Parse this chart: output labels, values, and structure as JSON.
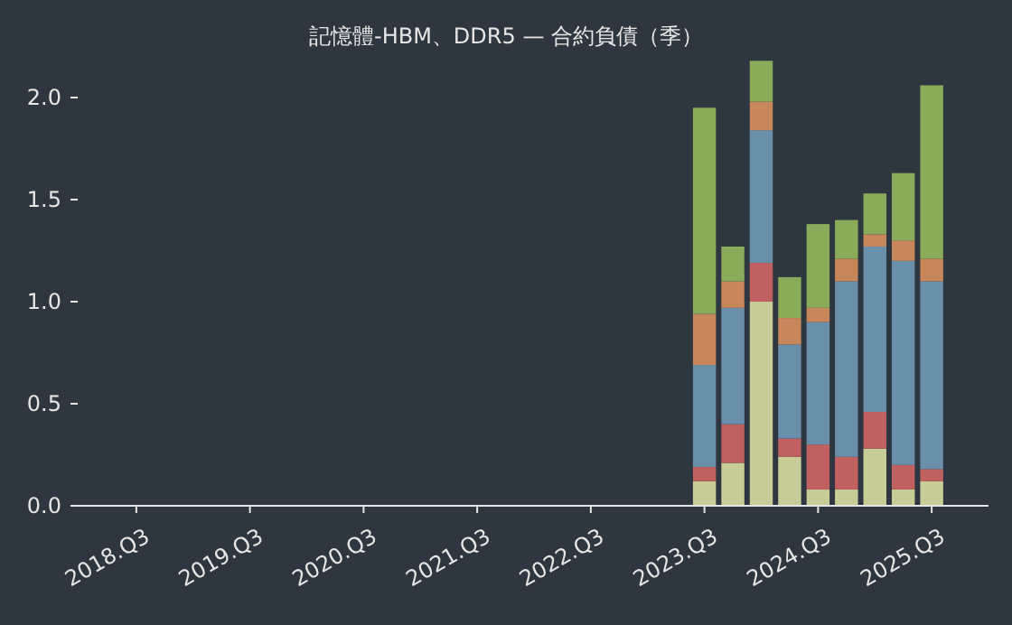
{
  "chart_data": {
    "type": "bar",
    "title": "記憶體-HBM、DDR5 — 合約負債（季）",
    "stacked": true,
    "grid": false,
    "categories": [
      null,
      null,
      "2018.Q3",
      null,
      null,
      null,
      "2019.Q3",
      null,
      null,
      null,
      "2020.Q3",
      null,
      null,
      null,
      "2021.Q3",
      null,
      null,
      null,
      "2022.Q3",
      null,
      null,
      null,
      "2023.Q3",
      null,
      null,
      null,
      "2024.Q3",
      null,
      null,
      null,
      "2025.Q3",
      null,
      null
    ],
    "ylim": [
      0,
      2.2
    ],
    "yticks": [
      {
        "value": 0,
        "label": "0.0"
      },
      {
        "value": 0.5,
        "label": "0.5"
      },
      {
        "value": 1,
        "label": "1.0"
      },
      {
        "value": 1.5,
        "label": "1.5"
      },
      {
        "value": 2,
        "label": "2.0"
      }
    ],
    "series": [
      {
        "color": "#c8cc96",
        "values": [
          null,
          null,
          null,
          null,
          null,
          null,
          null,
          null,
          null,
          null,
          null,
          null,
          null,
          null,
          null,
          null,
          null,
          null,
          null,
          null,
          null,
          null,
          0.12,
          0.21,
          1.0,
          0.24,
          0.08,
          0.08,
          0.28,
          0.08,
          0.12,
          null,
          null
        ]
      },
      {
        "color": "#c06060",
        "values": [
          null,
          null,
          null,
          null,
          null,
          null,
          null,
          null,
          null,
          null,
          null,
          null,
          null,
          null,
          null,
          null,
          null,
          null,
          null,
          null,
          null,
          null,
          0.07,
          0.19,
          0.19,
          0.09,
          0.22,
          0.16,
          0.18,
          0.12,
          0.06,
          null,
          null
        ]
      },
      {
        "color": "#6a8fab",
        "values": [
          null,
          null,
          null,
          null,
          null,
          null,
          null,
          null,
          null,
          null,
          null,
          null,
          null,
          null,
          null,
          null,
          null,
          null,
          null,
          null,
          null,
          null,
          0.5,
          0.57,
          0.65,
          0.46,
          0.6,
          0.86,
          0.81,
          1.0,
          0.92,
          null,
          null
        ]
      },
      {
        "color": "#c8875a",
        "values": [
          null,
          null,
          null,
          null,
          null,
          null,
          null,
          null,
          null,
          null,
          null,
          null,
          null,
          null,
          null,
          null,
          null,
          null,
          null,
          null,
          null,
          null,
          0.25,
          0.13,
          0.14,
          0.13,
          0.07,
          0.11,
          0.06,
          0.1,
          0.11,
          null,
          null
        ]
      },
      {
        "color": "#8aac5a",
        "values": [
          null,
          null,
          null,
          null,
          null,
          null,
          null,
          null,
          null,
          null,
          null,
          null,
          null,
          null,
          null,
          null,
          null,
          null,
          null,
          null,
          null,
          null,
          1.01,
          0.17,
          0.2,
          0.2,
          0.41,
          0.19,
          0.2,
          0.33,
          0.85,
          null,
          null
        ]
      }
    ]
  }
}
